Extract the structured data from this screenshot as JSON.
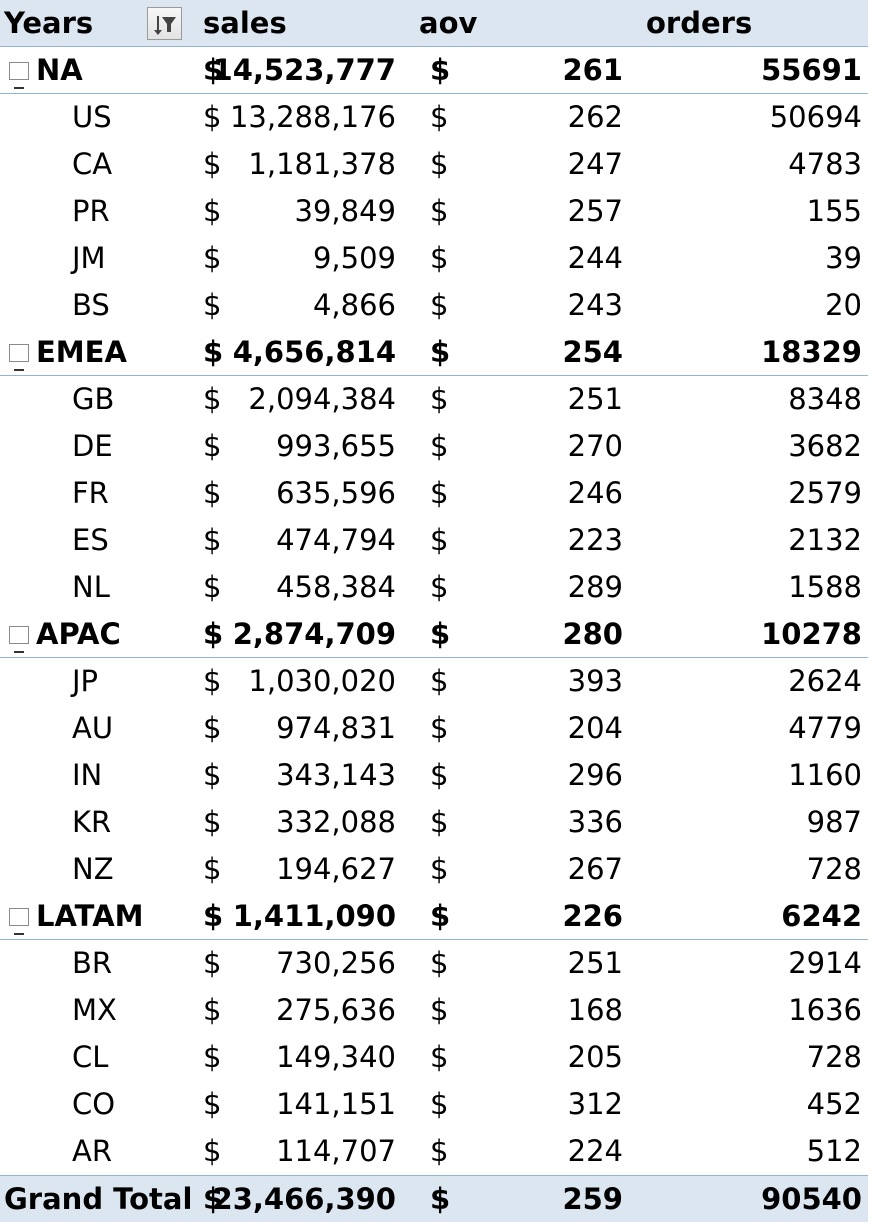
{
  "header": {
    "rows_label": "Years",
    "filter_icon": "filter-sort-icon",
    "col_sales": "sales",
    "col_aov": "aov",
    "col_orders": "orders"
  },
  "currency_symbol": "$",
  "groups": [
    {
      "name": "NA",
      "sales": "14,523,777",
      "aov": "261",
      "orders": "55691",
      "items": [
        {
          "name": "US",
          "sales": "13,288,176",
          "aov": "262",
          "orders": "50694"
        },
        {
          "name": "CA",
          "sales": "1,181,378",
          "aov": "247",
          "orders": "4783"
        },
        {
          "name": "PR",
          "sales": "39,849",
          "aov": "257",
          "orders": "155"
        },
        {
          "name": "JM",
          "sales": "9,509",
          "aov": "244",
          "orders": "39"
        },
        {
          "name": "BS",
          "sales": "4,866",
          "aov": "243",
          "orders": "20"
        }
      ]
    },
    {
      "name": "EMEA",
      "sales": "4,656,814",
      "aov": "254",
      "orders": "18329",
      "items": [
        {
          "name": "GB",
          "sales": "2,094,384",
          "aov": "251",
          "orders": "8348"
        },
        {
          "name": "DE",
          "sales": "993,655",
          "aov": "270",
          "orders": "3682"
        },
        {
          "name": "FR",
          "sales": "635,596",
          "aov": "246",
          "orders": "2579"
        },
        {
          "name": "ES",
          "sales": "474,794",
          "aov": "223",
          "orders": "2132"
        },
        {
          "name": "NL",
          "sales": "458,384",
          "aov": "289",
          "orders": "1588"
        }
      ]
    },
    {
      "name": "APAC",
      "sales": "2,874,709",
      "aov": "280",
      "orders": "10278",
      "items": [
        {
          "name": "JP",
          "sales": "1,030,020",
          "aov": "393",
          "orders": "2624"
        },
        {
          "name": "AU",
          "sales": "974,831",
          "aov": "204",
          "orders": "4779"
        },
        {
          "name": "IN",
          "sales": "343,143",
          "aov": "296",
          "orders": "1160"
        },
        {
          "name": "KR",
          "sales": "332,088",
          "aov": "336",
          "orders": "987"
        },
        {
          "name": "NZ",
          "sales": "194,627",
          "aov": "267",
          "orders": "728"
        }
      ]
    },
    {
      "name": "LATAM",
      "sales": "1,411,090",
      "aov": "226",
      "orders": "6242",
      "items": [
        {
          "name": "BR",
          "sales": "730,256",
          "aov": "251",
          "orders": "2914"
        },
        {
          "name": "MX",
          "sales": "275,636",
          "aov": "168",
          "orders": "1636"
        },
        {
          "name": "CL",
          "sales": "149,340",
          "aov": "205",
          "orders": "728"
        },
        {
          "name": "CO",
          "sales": "141,151",
          "aov": "312",
          "orders": "452"
        },
        {
          "name": "AR",
          "sales": "114,707",
          "aov": "224",
          "orders": "512"
        }
      ]
    }
  ],
  "grand_total": {
    "label": "Grand Total",
    "sales": "23,466,390",
    "aov": "259",
    "orders": "90540"
  },
  "colors": {
    "header_bg": "#dce6f1",
    "border": "#95b3d7"
  }
}
